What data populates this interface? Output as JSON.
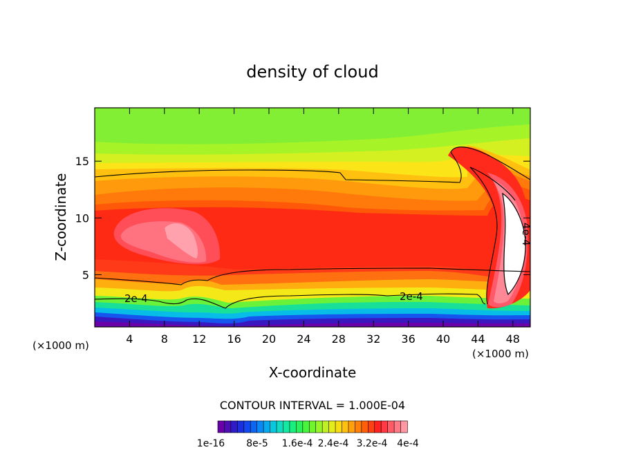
{
  "chart_data": {
    "type": "heatmap",
    "title": "density of cloud",
    "xlabel": "X-coordinate",
    "ylabel": "Z-coordinate",
    "x_unit": "(×1000 m)",
    "xlim": [
      0,
      50
    ],
    "ylim": [
      0.4,
      19.7
    ],
    "x_ticks": [
      4,
      8,
      12,
      16,
      20,
      24,
      28,
      32,
      36,
      40,
      44,
      48
    ],
    "y_ticks": [
      5,
      10,
      15
    ],
    "contour_interval_text": "CONTOUR INTERVAL = 1.000E-04",
    "contour_labels": [
      {
        "text": "2e-4",
        "x": 5.3,
        "y": 2.6
      },
      {
        "text": "2e-4",
        "x": 35.3,
        "y": 2.7
      },
      {
        "text": "4e-4",
        "x": 48.0,
        "y": 8.0
      }
    ],
    "colorbar": {
      "colors": [
        "#6a00a8",
        "#4b0fb5",
        "#2f1cc8",
        "#1b2fde",
        "#1248ee",
        "#0a66f5",
        "#0a88f5",
        "#08aaee",
        "#08c8e0",
        "#10dcc4",
        "#14e8a2",
        "#18ef7e",
        "#28f25a",
        "#48f53c",
        "#70f52c",
        "#98f428",
        "#c0f024",
        "#e4ec1c",
        "#f8dc14",
        "#ffc010",
        "#ffa00c",
        "#ff800a",
        "#ff6008",
        "#ff4010",
        "#ff2020",
        "#ff3a44",
        "#ff5a66",
        "#ff7a86",
        "#ff98a2"
      ],
      "labels": [
        "1e-16",
        "8e-5",
        "1.6e-4",
        "2.4e-4",
        "3.2e-4",
        "4e-4"
      ]
    }
  }
}
